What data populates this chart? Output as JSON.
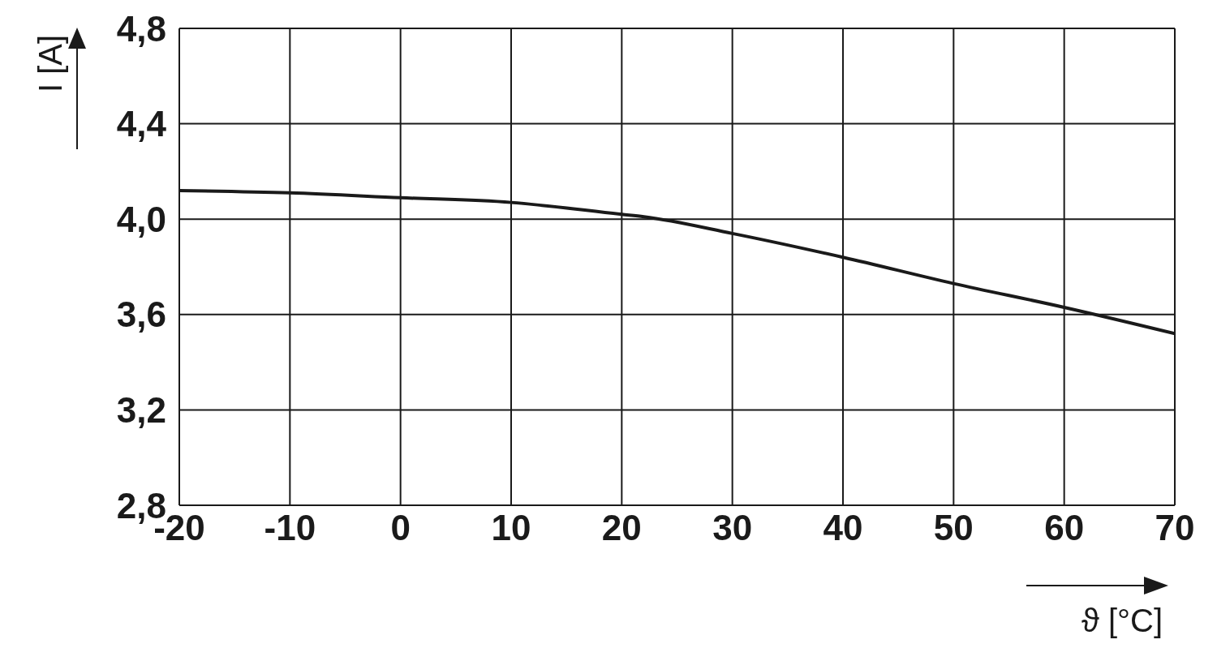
{
  "chart_data": {
    "type": "line",
    "xlabel": "ϑ [°C]",
    "ylabel": "I [A]",
    "x": [
      -20,
      -10,
      0,
      10,
      20,
      22,
      30,
      40,
      50,
      60,
      70
    ],
    "series": [
      {
        "color": "#1a1a1a",
        "values": [
          4.12,
          4.11,
          4.09,
          4.07,
          4.02,
          4.01,
          3.94,
          3.84,
          3.73,
          3.63,
          3.52
        ]
      }
    ],
    "xlim": [
      -20,
      70
    ],
    "xticks": [
      -20,
      -10,
      0,
      10,
      20,
      30,
      40,
      50,
      60,
      70
    ],
    "ylim": [
      2.8,
      4.8
    ],
    "yticks": [
      {
        "value": 2.8,
        "label": "2,8"
      },
      {
        "value": 3.2,
        "label": "3,2"
      },
      {
        "value": 3.6,
        "label": "3,6"
      },
      {
        "value": 4.0,
        "label": "4,0"
      },
      {
        "value": 4.4,
        "label": "4,4"
      },
      {
        "value": 4.8,
        "label": "4,8"
      }
    ],
    "grid": true,
    "legend": false,
    "marker": "none",
    "line_style": "solid"
  }
}
